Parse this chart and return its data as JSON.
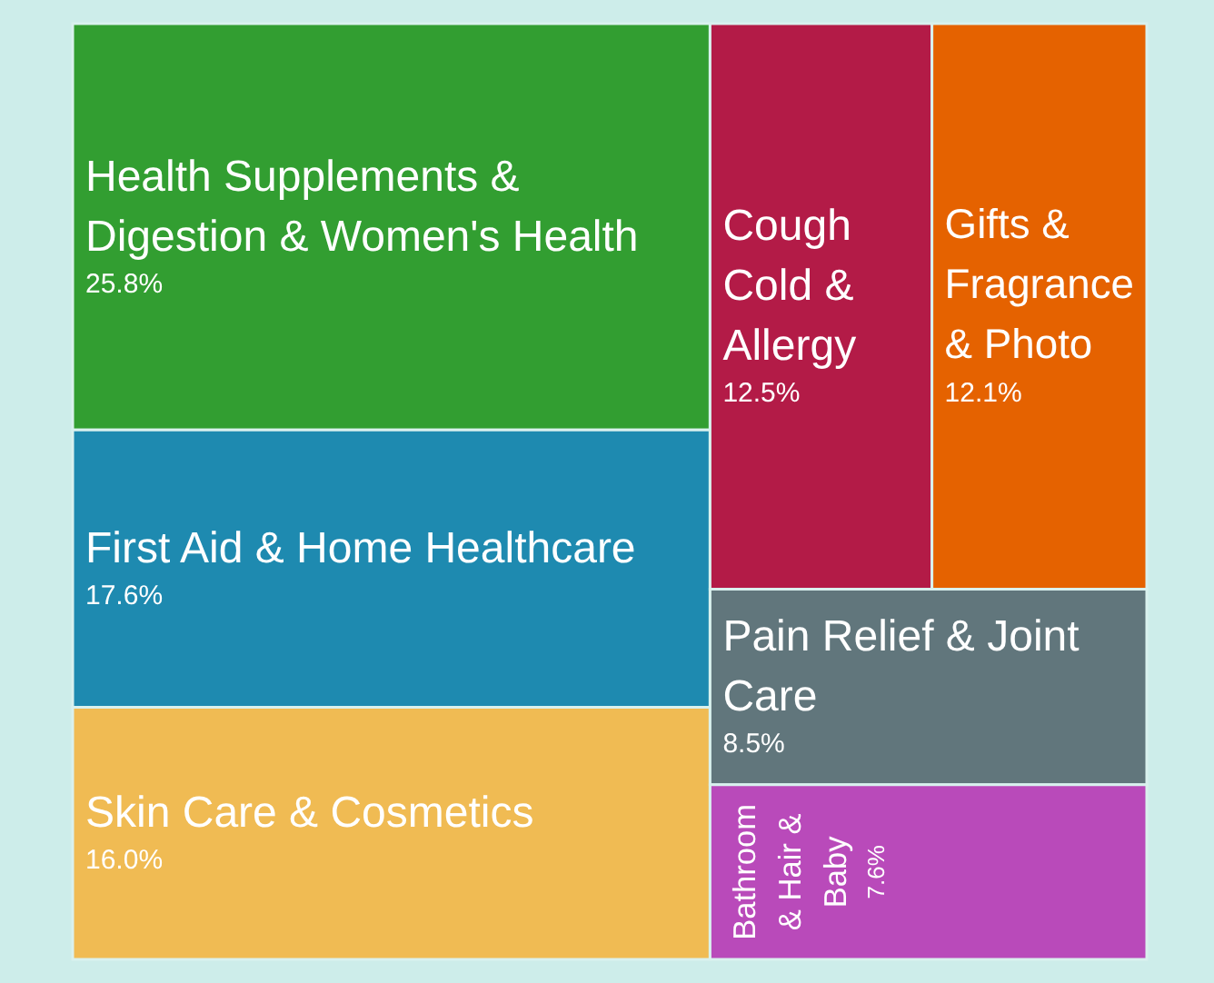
{
  "chart_data": {
    "type": "other",
    "categories": [
      "Health Supplements & Digestion & Women's Health",
      "First Aid & Home Healthcare",
      "Skin Care & Cosmetics",
      "Cough Cold & Allergy",
      "Gifts & Fragrance & Photo",
      "Pain Relief & Joint Care",
      "Bathroom & Hair & Baby"
    ],
    "values": [
      25.8,
      17.6,
      16.0,
      12.5,
      12.1,
      8.5,
      7.6
    ],
    "value_labels": [
      "25.8%",
      "17.6%",
      "16.0%",
      "12.5%",
      "12.1%",
      "8.5%",
      "7.6%"
    ],
    "colors": [
      "#329e31",
      "#1e8ab0",
      "#f0bb53",
      "#b31b47",
      "#e56200",
      "#61767c",
      "#b94aba"
    ]
  }
}
